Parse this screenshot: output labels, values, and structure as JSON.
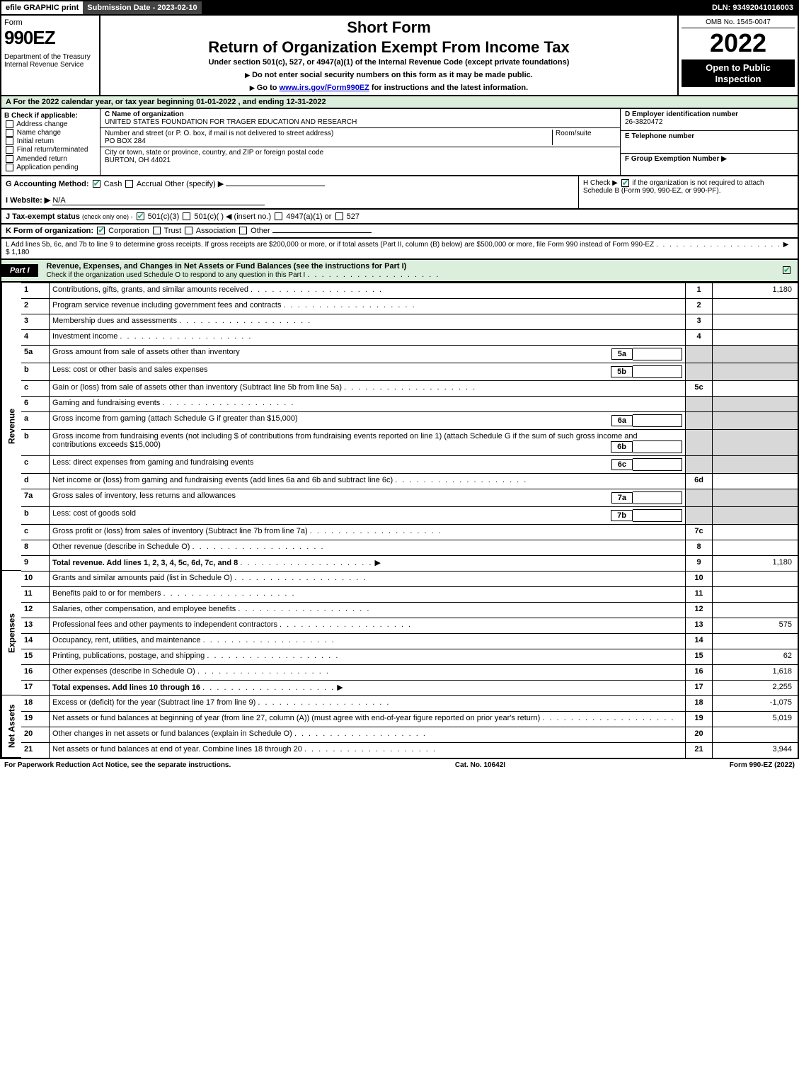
{
  "colors": {
    "green_bg": "#dceedc",
    "black": "#000000",
    "shade": "#d8d8d8",
    "link": "#0000cc",
    "check": "#22aa77"
  },
  "topbar": {
    "efile": "efile GRAPHIC print",
    "subdate_label": "Submission Date - 2023-02-10",
    "dln": "DLN: 93492041016003"
  },
  "header": {
    "form_word": "Form",
    "form_no": "990EZ",
    "dept1": "Department of the Treasury",
    "dept2": "Internal Revenue Service",
    "short": "Short Form",
    "title": "Return of Organization Exempt From Income Tax",
    "sub": "Under section 501(c), 527, or 4947(a)(1) of the Internal Revenue Code (except private foundations)",
    "sub2": "Do not enter social security numbers on this form as it may be made public.",
    "sub3_pre": "Go to ",
    "sub3_link": "www.irs.gov/Form990EZ",
    "sub3_post": " for instructions and the latest information.",
    "omb": "OMB No. 1545-0047",
    "year": "2022",
    "badge": "Open to Public Inspection"
  },
  "rowA": "A  For the 2022 calendar year, or tax year beginning 01-01-2022  , and ending 12-31-2022",
  "boxB": {
    "label": "B  Check if applicable:",
    "items": [
      "Address change",
      "Name change",
      "Initial return",
      "Final return/terminated",
      "Amended return",
      "Application pending"
    ]
  },
  "boxC": {
    "name_lbl": "C Name of organization",
    "name": "UNITED STATES FOUNDATION FOR TRAGER EDUCATION AND RESEARCH",
    "addr_lbl": "Number and street (or P. O. box, if mail is not delivered to street address)",
    "room_lbl": "Room/suite",
    "addr": "PO BOX 284",
    "city_lbl": "City or town, state or province, country, and ZIP or foreign postal code",
    "city": "BURTON, OH  44021"
  },
  "boxDEF": {
    "d_lbl": "D Employer identification number",
    "d_val": "26-3820472",
    "e_lbl": "E Telephone number",
    "e_val": "",
    "f_lbl": "F Group Exemption Number  ▶"
  },
  "rowG": {
    "label": "G Accounting Method:",
    "opts": [
      "Cash",
      "Accrual",
      "Other (specify) ▶"
    ],
    "cash_checked": true
  },
  "rowH": {
    "text_pre": "H  Check ▶ ",
    "text_post": " if the organization is not required to attach Schedule B (Form 990, 990-EZ, or 990-PF).",
    "checked": true
  },
  "rowI": {
    "label": "I Website: ▶",
    "val": "N/A"
  },
  "rowJ": {
    "label": "J Tax-exempt status",
    "note": "(check only one) -",
    "opts": [
      "501(c)(3)",
      "501(c)(  ) ◀ (insert no.)",
      "4947(a)(1) or",
      "527"
    ],
    "c3_checked": true
  },
  "rowK": {
    "label": "K Form of organization:",
    "opts": [
      "Corporation",
      "Trust",
      "Association",
      "Other"
    ],
    "corp_checked": true
  },
  "rowL": {
    "text": "L Add lines 5b, 6c, and 7b to line 9 to determine gross receipts. If gross receipts are $200,000 or more, or if total assets (Part II, column (B) below) are $500,000 or more, file Form 990 instead of Form 990-EZ",
    "arrow": "▶",
    "amount": "$ 1,180"
  },
  "partI": {
    "tab": "Part I",
    "title": "Revenue, Expenses, and Changes in Net Assets or Fund Balances (see the instructions for Part I)",
    "sub": "Check if the organization used Schedule O to respond to any question in this Part I",
    "endchecked": true
  },
  "sections": {
    "revenue_label": "Revenue",
    "expenses_label": "Expenses",
    "netassets_label": "Net Assets"
  },
  "lines": [
    {
      "n": "1",
      "desc": "Contributions, gifts, grants, and similar amounts received",
      "num": "1",
      "val": "1,180"
    },
    {
      "n": "2",
      "desc": "Program service revenue including government fees and contracts",
      "num": "2",
      "val": ""
    },
    {
      "n": "3",
      "desc": "Membership dues and assessments",
      "num": "3",
      "val": ""
    },
    {
      "n": "4",
      "desc": "Investment income",
      "num": "4",
      "val": ""
    },
    {
      "n": "5a",
      "desc": "Gross amount from sale of assets other than inventory",
      "mini": "5a",
      "shade": true
    },
    {
      "n": "b",
      "desc": "Less: cost or other basis and sales expenses",
      "mini": "5b",
      "shade": true
    },
    {
      "n": "c",
      "desc": "Gain or (loss) from sale of assets other than inventory (Subtract line 5b from line 5a)",
      "num": "5c",
      "val": ""
    },
    {
      "n": "6",
      "desc": "Gaming and fundraising events",
      "shade": true,
      "noval": true
    },
    {
      "n": "a",
      "desc": "Gross income from gaming (attach Schedule G if greater than $15,000)",
      "mini": "6a",
      "shade": true
    },
    {
      "n": "b",
      "desc": "Gross income from fundraising events (not including $                   of contributions from fundraising events reported on line 1) (attach Schedule G if the sum of such gross income and contributions exceeds $15,000)",
      "mini": "6b",
      "shade": true
    },
    {
      "n": "c",
      "desc": "Less: direct expenses from gaming and fundraising events",
      "mini": "6c",
      "shade": true
    },
    {
      "n": "d",
      "desc": "Net income or (loss) from gaming and fundraising events (add lines 6a and 6b and subtract line 6c)",
      "num": "6d",
      "val": ""
    },
    {
      "n": "7a",
      "desc": "Gross sales of inventory, less returns and allowances",
      "mini": "7a",
      "shade": true
    },
    {
      "n": "b",
      "desc": "Less: cost of goods sold",
      "mini": "7b",
      "shade": true
    },
    {
      "n": "c",
      "desc": "Gross profit or (loss) from sales of inventory (Subtract line 7b from line 7a)",
      "num": "7c",
      "val": ""
    },
    {
      "n": "8",
      "desc": "Other revenue (describe in Schedule O)",
      "num": "8",
      "val": ""
    },
    {
      "n": "9",
      "desc": "Total revenue. Add lines 1, 2, 3, 4, 5c, 6d, 7c, and 8",
      "num": "9",
      "val": "1,180",
      "bold": true,
      "arrow": true
    }
  ],
  "explines": [
    {
      "n": "10",
      "desc": "Grants and similar amounts paid (list in Schedule O)",
      "num": "10",
      "val": ""
    },
    {
      "n": "11",
      "desc": "Benefits paid to or for members",
      "num": "11",
      "val": ""
    },
    {
      "n": "12",
      "desc": "Salaries, other compensation, and employee benefits",
      "num": "12",
      "val": ""
    },
    {
      "n": "13",
      "desc": "Professional fees and other payments to independent contractors",
      "num": "13",
      "val": "575"
    },
    {
      "n": "14",
      "desc": "Occupancy, rent, utilities, and maintenance",
      "num": "14",
      "val": ""
    },
    {
      "n": "15",
      "desc": "Printing, publications, postage, and shipping",
      "num": "15",
      "val": "62"
    },
    {
      "n": "16",
      "desc": "Other expenses (describe in Schedule O)",
      "num": "16",
      "val": "1,618"
    },
    {
      "n": "17",
      "desc": "Total expenses. Add lines 10 through 16",
      "num": "17",
      "val": "2,255",
      "bold": true,
      "arrow": true
    }
  ],
  "netlines": [
    {
      "n": "18",
      "desc": "Excess or (deficit) for the year (Subtract line 17 from line 9)",
      "num": "18",
      "val": "-1,075"
    },
    {
      "n": "19",
      "desc": "Net assets or fund balances at beginning of year (from line 27, column (A)) (must agree with end-of-year figure reported on prior year's return)",
      "num": "19",
      "val": "5,019"
    },
    {
      "n": "20",
      "desc": "Other changes in net assets or fund balances (explain in Schedule O)",
      "num": "20",
      "val": ""
    },
    {
      "n": "21",
      "desc": "Net assets or fund balances at end of year. Combine lines 18 through 20",
      "num": "21",
      "val": "3,944"
    }
  ],
  "footer": {
    "left": "For Paperwork Reduction Act Notice, see the separate instructions.",
    "mid": "Cat. No. 10642I",
    "right": "Form 990-EZ (2022)"
  }
}
